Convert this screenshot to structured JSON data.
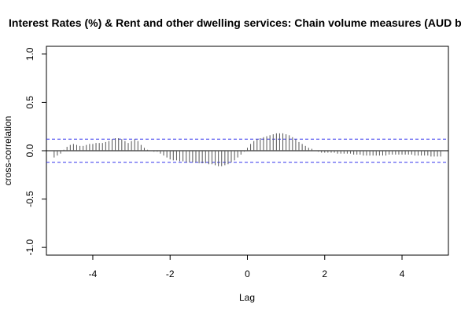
{
  "chart_data": {
    "type": "bar",
    "title": "Interest Rates (%) & Rent and other dwelling services: Chain volume measures (AUD b",
    "xlabel": "Lag",
    "ylabel": "cross-correlation",
    "xlim": [
      -5.2,
      5.2
    ],
    "ylim": [
      -1.08,
      1.08
    ],
    "x_ticks": [
      -4,
      -2,
      0,
      2,
      4
    ],
    "x_tick_labels": [
      "-4",
      "-2",
      "0",
      "2",
      "4"
    ],
    "y_ticks": [
      -1.0,
      -0.5,
      0.0,
      0.5,
      1.0
    ],
    "y_tick_labels": [
      "-1.0",
      "-0.5",
      "0.0",
      "0.5",
      "1.0"
    ],
    "confidence_bounds": [
      0.12,
      -0.12
    ],
    "colors": {
      "bars": "#555555",
      "bounds": "#3333ee",
      "zero_line": "#000000",
      "frame": "#000000"
    },
    "lag_step": 0.0833,
    "series": [
      {
        "x": [
          -5.0,
          -4.917,
          -4.833,
          -4.75,
          -4.667,
          -4.583,
          -4.5,
          -4.417,
          -4.333,
          -4.25,
          -4.167,
          -4.083,
          -4.0,
          -3.917,
          -3.833,
          -3.75,
          -3.667,
          -3.583,
          -3.5,
          -3.417,
          -3.333,
          -3.25,
          -3.167,
          -3.083,
          -3.0,
          -2.917,
          -2.833,
          -2.75,
          -2.667,
          -2.583,
          -2.5,
          -2.417,
          -2.333,
          -2.25,
          -2.167,
          -2.083,
          -2.0,
          -1.917,
          -1.833,
          -1.75,
          -1.667,
          -1.583,
          -1.5,
          -1.417,
          -1.333,
          -1.25,
          -1.167,
          -1.083,
          -1.0,
          -0.917,
          -0.833,
          -0.75,
          -0.667,
          -0.583,
          -0.5,
          -0.417,
          -0.333,
          -0.25,
          -0.167,
          -0.083,
          0.0,
          0.083,
          0.167,
          0.25,
          0.333,
          0.417,
          0.5,
          0.583,
          0.667,
          0.75,
          0.833,
          0.917,
          1.0,
          1.083,
          1.167,
          1.25,
          1.333,
          1.417,
          1.5,
          1.583,
          1.667,
          1.75,
          1.833,
          1.917,
          2.0,
          2.083,
          2.167,
          2.25,
          2.333,
          2.417,
          2.5,
          2.583,
          2.667,
          2.75,
          2.833,
          2.917,
          3.0,
          3.083,
          3.167,
          3.25,
          3.333,
          3.417,
          3.5,
          3.583,
          3.667,
          3.75,
          3.833,
          3.917,
          4.0,
          4.083,
          4.167,
          4.25,
          4.333,
          4.417,
          4.5,
          4.583,
          4.667,
          4.75,
          4.833,
          4.917,
          5.0
        ],
        "values": [
          -0.07,
          -0.05,
          -0.03,
          0.01,
          0.04,
          0.06,
          0.07,
          0.06,
          0.05,
          0.05,
          0.06,
          0.07,
          0.07,
          0.08,
          0.08,
          0.08,
          0.09,
          0.1,
          0.12,
          0.13,
          0.13,
          0.12,
          0.1,
          0.08,
          0.1,
          0.12,
          0.1,
          0.06,
          0.03,
          0.01,
          0.0,
          -0.01,
          -0.01,
          -0.03,
          -0.05,
          -0.07,
          -0.09,
          -0.1,
          -0.1,
          -0.11,
          -0.11,
          -0.12,
          -0.12,
          -0.12,
          -0.12,
          -0.13,
          -0.13,
          -0.13,
          -0.14,
          -0.14,
          -0.15,
          -0.16,
          -0.16,
          -0.15,
          -0.14,
          -0.12,
          -0.1,
          -0.07,
          -0.04,
          -0.01,
          0.03,
          0.07,
          0.1,
          0.12,
          0.13,
          0.14,
          0.15,
          0.16,
          0.17,
          0.18,
          0.18,
          0.18,
          0.17,
          0.16,
          0.14,
          0.12,
          0.09,
          0.07,
          0.05,
          0.03,
          0.02,
          0.0,
          -0.01,
          -0.02,
          -0.02,
          -0.02,
          -0.02,
          -0.02,
          -0.03,
          -0.03,
          -0.03,
          -0.03,
          -0.03,
          -0.04,
          -0.04,
          -0.04,
          -0.05,
          -0.05,
          -0.05,
          -0.05,
          -0.05,
          -0.05,
          -0.05,
          -0.05,
          -0.04,
          -0.04,
          -0.04,
          -0.04,
          -0.04,
          -0.04,
          -0.04,
          -0.04,
          -0.05,
          -0.05,
          -0.05,
          -0.05,
          -0.05,
          -0.06,
          -0.06,
          -0.06,
          -0.06
        ]
      }
    ]
  }
}
